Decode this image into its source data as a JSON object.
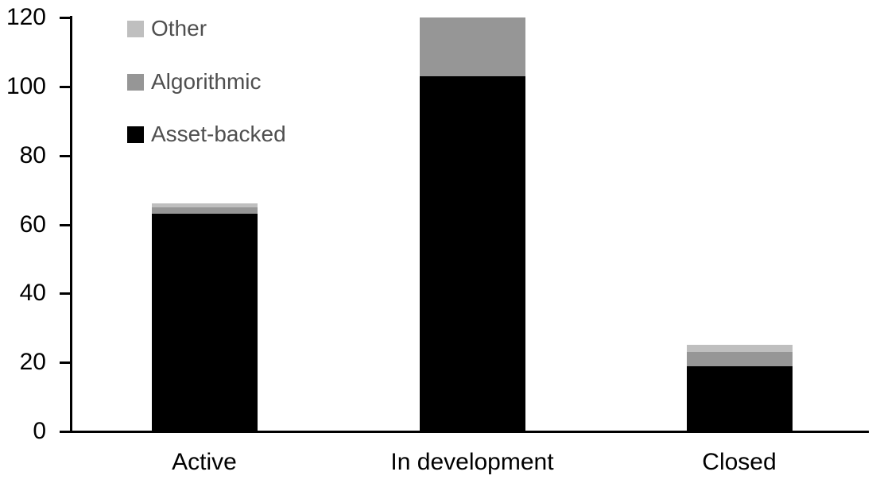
{
  "chart_data": {
    "type": "bar",
    "stacked": true,
    "title": "",
    "xlabel": "",
    "ylabel": "",
    "categories": [
      "Active",
      "In development",
      "Closed"
    ],
    "series": [
      {
        "name": "Asset-backed",
        "color": "#000000",
        "values": [
          63,
          103,
          19
        ]
      },
      {
        "name": "Algorithmic",
        "color": "#969696",
        "values": [
          2,
          17,
          4
        ]
      },
      {
        "name": "Other",
        "color": "#bfbfbf",
        "values": [
          1,
          0,
          2
        ]
      }
    ],
    "ylim": [
      0,
      120
    ],
    "yticks": [
      0,
      20,
      40,
      60,
      80,
      100,
      120
    ],
    "grid": false,
    "legend_position": "top-left"
  },
  "legend": {
    "items": [
      {
        "label": "Other",
        "color": "#bfbfbf"
      },
      {
        "label": "Algorithmic",
        "color": "#969696"
      },
      {
        "label": "Asset-backed",
        "color": "#000000"
      }
    ]
  },
  "colors": {
    "axis": "#000000",
    "tick_label": "#000000",
    "category_label": "#000000",
    "legend_text": "#4f4f4f",
    "background": "#ffffff"
  }
}
